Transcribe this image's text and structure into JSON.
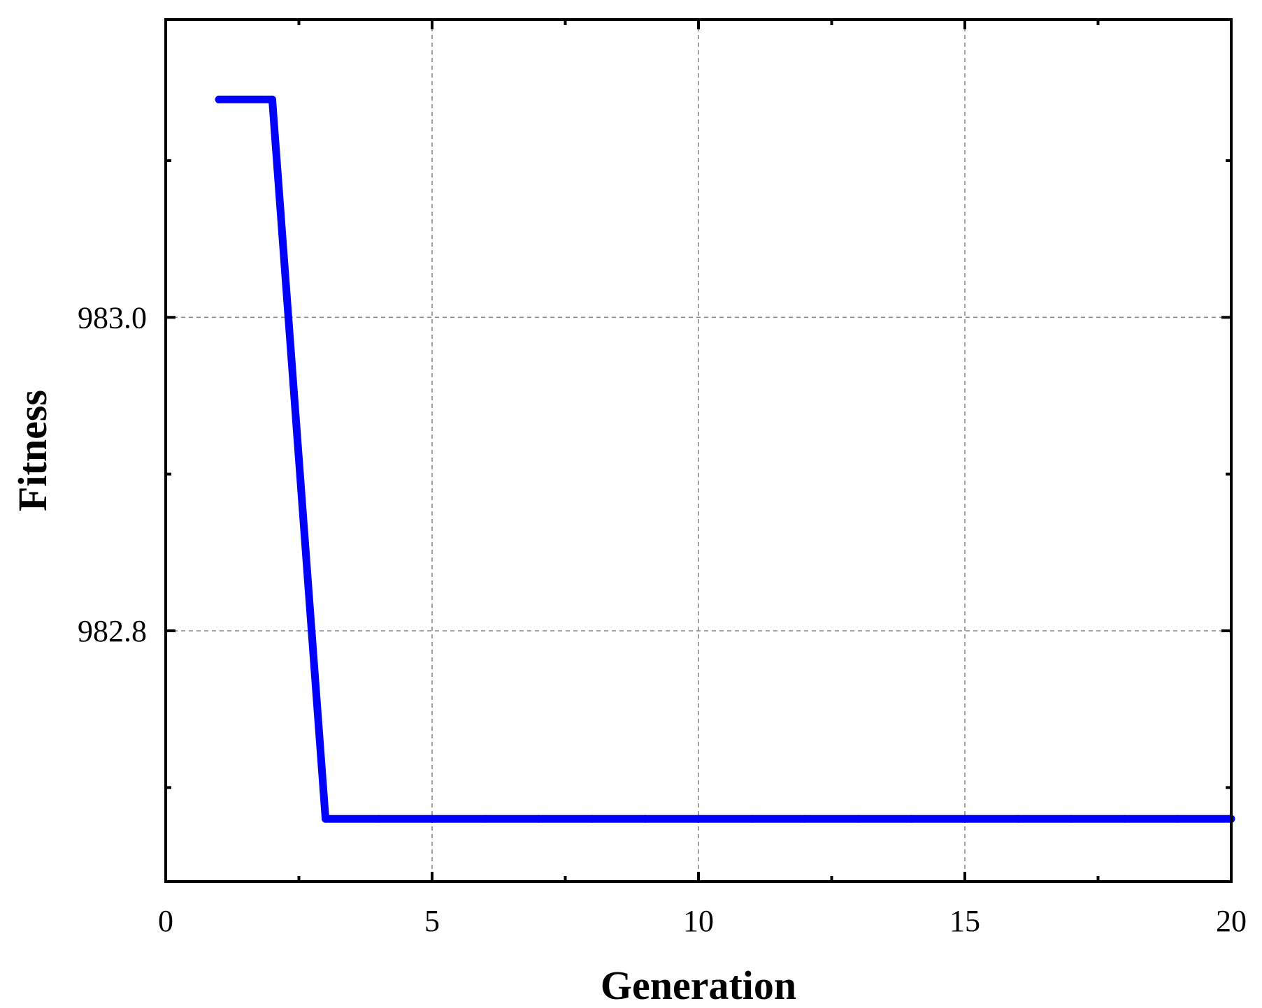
{
  "chart_data": {
    "type": "line",
    "title": "",
    "xlabel": "Generation",
    "ylabel": "Fitness",
    "xlim": [
      0,
      20
    ],
    "ylim": [
      982.64,
      983.19
    ],
    "x_ticks": [
      {
        "value": 0,
        "label": "0"
      },
      {
        "value": 5,
        "label": "5"
      },
      {
        "value": 10,
        "label": "10"
      },
      {
        "value": 15,
        "label": "15"
      },
      {
        "value": 20,
        "label": "20"
      }
    ],
    "y_ticks": [
      {
        "value": 982.8,
        "label": "982.8"
      },
      {
        "value": 983.0,
        "label": "983.0"
      }
    ],
    "x_minor_ticks": [
      2.5,
      7.5,
      12.5,
      17.5
    ],
    "y_minor_ticks": [
      982.7,
      982.9,
      983.1
    ],
    "grid": true,
    "legend": "none",
    "series": [
      {
        "color": "#0000ff",
        "x": [
          1,
          2,
          3,
          4,
          5,
          6,
          7,
          8,
          9,
          10,
          11,
          12,
          13,
          14,
          15,
          16,
          17,
          18,
          19,
          20
        ],
        "y": [
          983.139,
          983.139,
          982.68,
          982.68,
          982.68,
          982.68,
          982.68,
          982.68,
          982.68,
          982.68,
          982.68,
          982.68,
          982.68,
          982.68,
          982.68,
          982.68,
          982.68,
          982.68,
          982.68,
          982.68
        ]
      }
    ]
  }
}
